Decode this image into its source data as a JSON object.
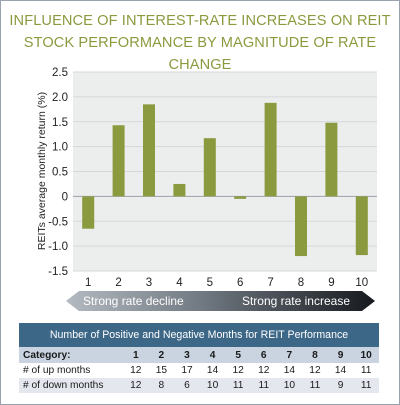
{
  "chart_data": {
    "type": "bar",
    "title": "INFLUENCE OF INTEREST-RATE INCREASES ON REIT STOCK PERFORMANCE BY MAGNITUDE OF RATE CHANGE",
    "ylabel": "REITs average monthly return (%)",
    "xlabel": "",
    "categories": [
      "1",
      "2",
      "3",
      "4",
      "5",
      "6",
      "7",
      "8",
      "9",
      "10"
    ],
    "values": [
      -0.65,
      1.43,
      1.85,
      0.25,
      1.17,
      -0.05,
      1.88,
      -1.2,
      1.48,
      -1.18
    ],
    "ylim": [
      -1.5,
      2.5
    ],
    "yticks": [
      "2.5",
      "2.0",
      "1.5",
      "1.0",
      "0.5",
      "0",
      "-0.5",
      "-1.0",
      "-1.5"
    ],
    "ytick_values": [
      2.5,
      2.0,
      1.5,
      1.0,
      0.5,
      0,
      -0.5,
      -1.0,
      -1.5
    ],
    "grid": true,
    "bar_color": "#8b9a3e",
    "plot_background": "#eceeee"
  },
  "arrow": {
    "left_label": "Strong rate decline",
    "right_label": "Strong rate increase"
  },
  "table": {
    "title": "Number of Positive and Negative Months for REIT Performance",
    "header_label": "Category:",
    "columns": [
      "1",
      "2",
      "3",
      "4",
      "5",
      "6",
      "7",
      "8",
      "9",
      "10"
    ],
    "rows": [
      {
        "label": "# of up months",
        "values": [
          "12",
          "15",
          "17",
          "14",
          "12",
          "12",
          "14",
          "12",
          "14",
          "11"
        ]
      },
      {
        "label": "# of down months",
        "values": [
          "12",
          "8",
          "6",
          "10",
          "11",
          "11",
          "10",
          "11",
          "9",
          "11"
        ]
      }
    ]
  },
  "colors": {
    "title": "#8b9a3e",
    "table_header": "#3d6787"
  }
}
